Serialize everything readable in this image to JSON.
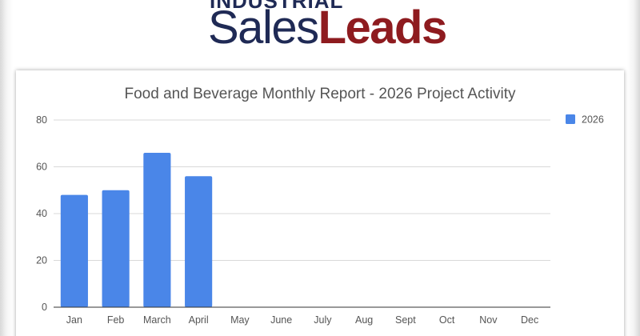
{
  "logo": {
    "top_text": "INDUSTRIAL",
    "main_part1": "Sales",
    "main_part2": "Leads"
  },
  "colors": {
    "bar": "#4a86e8",
    "grid": "#d9d9d9",
    "axis": "#333333",
    "text": "#555555"
  },
  "chart_data": {
    "type": "bar",
    "title": "Food and Beverage Monthly Report - 2026 Project Activity",
    "categories": [
      "Jan",
      "Feb",
      "March",
      "April",
      "May",
      "June",
      "July",
      "Aug",
      "Sept",
      "Oct",
      "Nov",
      "Dec"
    ],
    "series": [
      {
        "name": "2026",
        "values": [
          48,
          50,
          66,
          56,
          null,
          null,
          null,
          null,
          null,
          null,
          null,
          null
        ]
      }
    ],
    "ylim": [
      0,
      80
    ],
    "yticks": [
      0,
      20,
      40,
      60,
      80
    ],
    "grid": true,
    "legend": "right"
  }
}
